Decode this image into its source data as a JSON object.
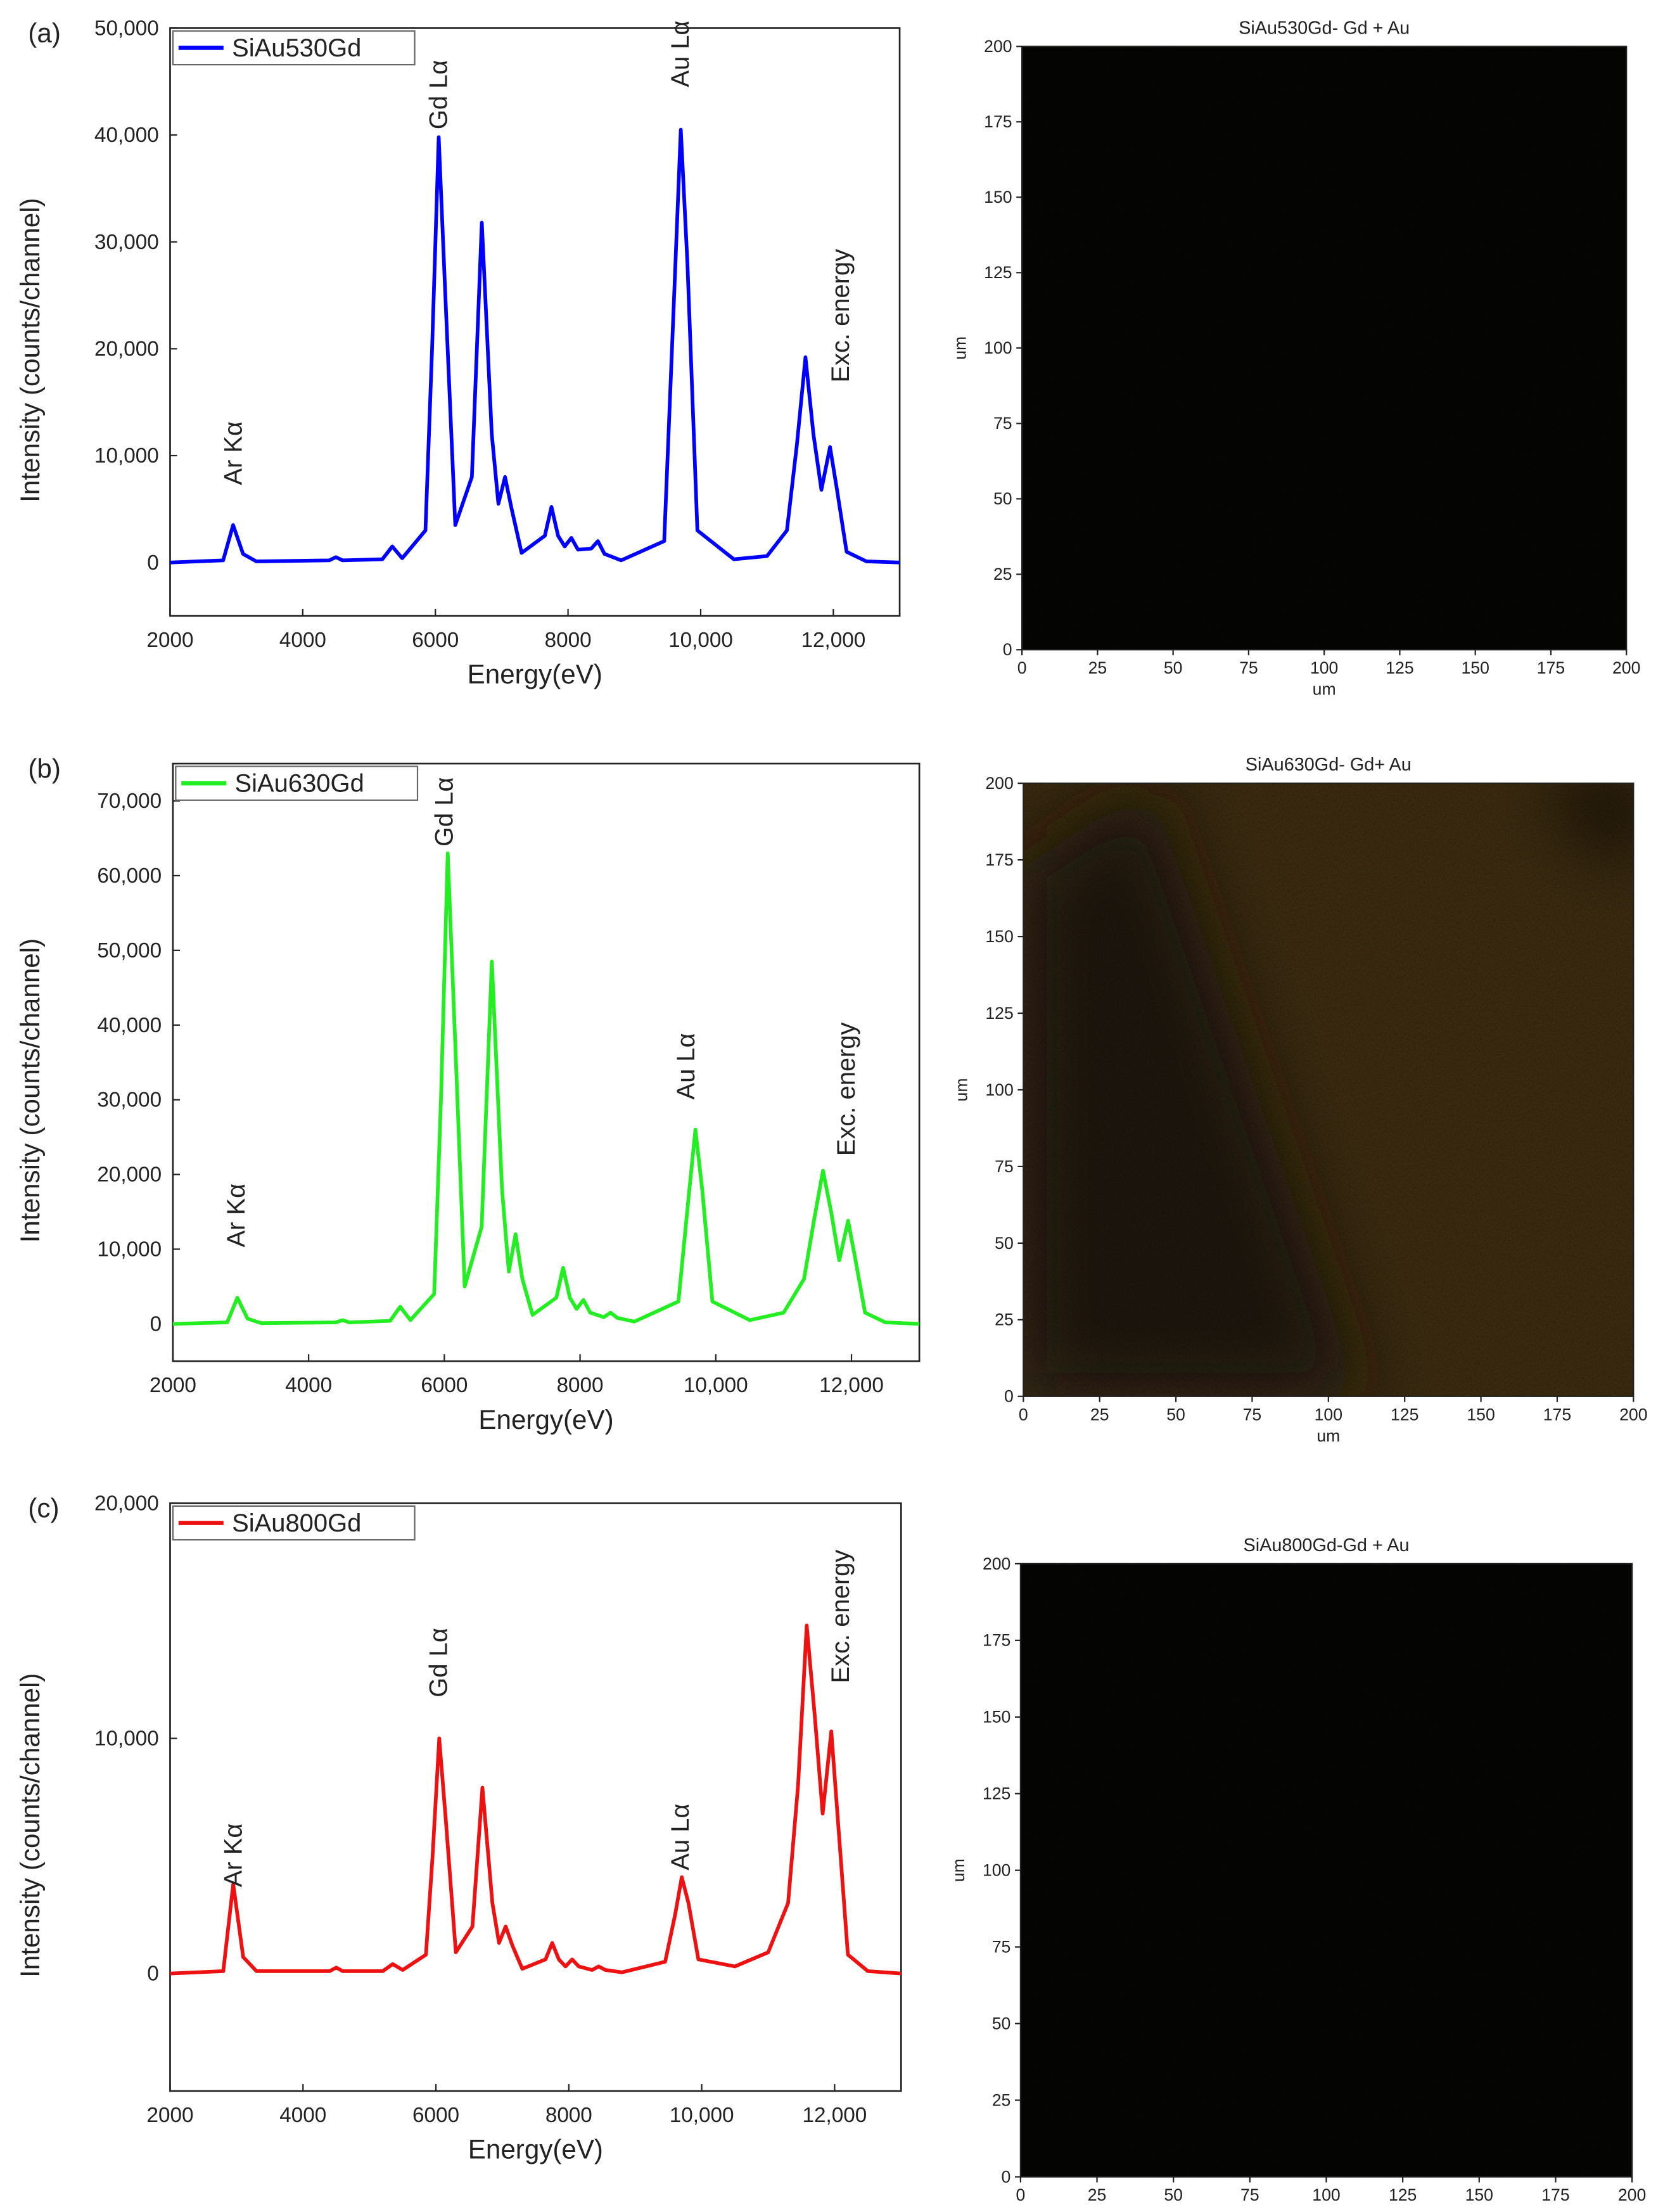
{
  "chart_data": [
    {
      "type": "line",
      "panel_label": "(a)",
      "xlabel": "Energy(eV)",
      "ylabel": "Intensity (counts/channel)",
      "x": [
        2000,
        2800,
        2950,
        3100,
        3300,
        4400,
        4500,
        4600,
        5200,
        5350,
        5500,
        5850,
        5950,
        6050,
        6150,
        6300,
        6550,
        6700,
        6850,
        6950,
        7050,
        7150,
        7300,
        7650,
        7750,
        7850,
        7950,
        8050,
        8150,
        8350,
        8450,
        8550,
        8800,
        9450,
        9600,
        9700,
        9800,
        9950,
        10500,
        11000,
        11300,
        11450,
        11580,
        11700,
        11820,
        11950,
        12050,
        12200,
        12500,
        13000
      ],
      "series": [
        {
          "name": "SiAu530Gd",
          "color": "#0000ff",
          "values": [
            0,
            200,
            3500,
            800,
            100,
            200,
            500,
            200,
            300,
            1500,
            400,
            3000,
            20000,
            39800,
            25000,
            3500,
            8000,
            31800,
            12000,
            5500,
            8000,
            5000,
            900,
            2500,
            5200,
            2500,
            1500,
            2300,
            1200,
            1300,
            2000,
            800,
            200,
            2000,
            25000,
            40500,
            28000,
            3000,
            300,
            600,
            3000,
            11000,
            19200,
            12000,
            6800,
            10800,
            7000,
            1000,
            100,
            0
          ]
        }
      ],
      "xlim": [
        2000,
        13000
      ],
      "ylim": [
        -5000,
        50000
      ],
      "xticks": [
        2000,
        4000,
        6000,
        8000,
        {
          "value": 10000,
          "label": "10,000"
        },
        {
          "value": 12000,
          "label": "12,000"
        }
      ],
      "yticks": [
        0,
        {
          "value": 10000,
          "label": "10,000"
        },
        {
          "value": 20000,
          "label": "20,000"
        },
        {
          "value": 30000,
          "label": "30,000"
        },
        {
          "value": 40000,
          "label": "40,000"
        },
        {
          "value": 50000,
          "label": "50,000"
        }
      ],
      "annotations": [
        "Ar Kα",
        "Gd Lα",
        "Au Lα",
        "Exc. energy"
      ],
      "legend": "upper left"
    },
    {
      "type": "image",
      "title": "SiAu530Gd- Gd + Au",
      "xlabel": "um",
      "ylabel": "um",
      "xlim": [
        0,
        200
      ],
      "ylim": [
        0,
        200
      ],
      "xticks": [
        0,
        25,
        50,
        75,
        100,
        125,
        150,
        175,
        200
      ],
      "yticks": [
        0,
        25,
        50,
        75,
        100,
        125,
        150,
        175,
        200
      ]
    },
    {
      "type": "line",
      "panel_label": "(b)",
      "xlabel": "Energy(eV)",
      "ylabel": "Intensity (counts/channel)",
      "x": [
        2000,
        2800,
        2950,
        3100,
        3300,
        4400,
        4500,
        4600,
        5200,
        5350,
        5500,
        5850,
        5950,
        6050,
        6150,
        6300,
        6550,
        6700,
        6850,
        6950,
        7050,
        7150,
        7300,
        7650,
        7750,
        7850,
        7950,
        8050,
        8150,
        8350,
        8450,
        8550,
        8800,
        9450,
        9600,
        9700,
        9800,
        9950,
        10500,
        11000,
        11300,
        11450,
        11580,
        11700,
        11820,
        11950,
        12050,
        12200,
        12500,
        13000
      ],
      "series": [
        {
          "name": "SiAu630Gd",
          "color": "#22ee22",
          "values": [
            0,
            200,
            3500,
            700,
            100,
            200,
            500,
            200,
            400,
            2300,
            500,
            4000,
            30000,
            63000,
            40000,
            5000,
            13000,
            48500,
            18000,
            7000,
            12000,
            6000,
            1200,
            3500,
            7500,
            3500,
            2000,
            3200,
            1500,
            900,
            1500,
            800,
            300,
            3000,
            17000,
            26000,
            18000,
            3000,
            500,
            1500,
            6000,
            14000,
            20500,
            15000,
            8500,
            13800,
            9000,
            1500,
            200,
            0
          ]
        }
      ],
      "xlim": [
        2000,
        13000
      ],
      "ylim": [
        -5000,
        75000
      ],
      "xticks": [
        2000,
        4000,
        6000,
        8000,
        {
          "value": 10000,
          "label": "10,000"
        },
        {
          "value": 12000,
          "label": "12,000"
        }
      ],
      "yticks": [
        0,
        {
          "value": 10000,
          "label": "10,000"
        },
        {
          "value": 20000,
          "label": "20,000"
        },
        {
          "value": 30000,
          "label": "30,000"
        },
        {
          "value": 40000,
          "label": "40,000"
        },
        {
          "value": 50000,
          "label": "50,000"
        },
        {
          "value": 60000,
          "label": "60,000"
        },
        {
          "value": 70000,
          "label": "70,000"
        }
      ],
      "annotations": [
        "Ar Kα",
        "Gd Lα",
        "Au Lα",
        "Exc. energy"
      ],
      "legend": "upper left"
    },
    {
      "type": "image",
      "title": "SiAu630Gd- Gd+ Au",
      "xlabel": "um",
      "ylabel": "um",
      "xlim": [
        0,
        200
      ],
      "ylim": [
        0,
        200
      ],
      "xticks": [
        0,
        25,
        50,
        75,
        100,
        125,
        150,
        175,
        200
      ],
      "yticks": [
        0,
        25,
        50,
        75,
        100,
        125,
        150,
        175,
        200
      ]
    },
    {
      "type": "line",
      "panel_label": "(c)",
      "xlabel": "Energy(eV)",
      "ylabel": "Intensity (counts/channel)",
      "x": [
        2000,
        2800,
        2950,
        3100,
        3300,
        4400,
        4500,
        4600,
        5200,
        5350,
        5500,
        5850,
        5950,
        6050,
        6150,
        6300,
        6550,
        6700,
        6850,
        6950,
        7050,
        7150,
        7300,
        7650,
        7750,
        7850,
        7950,
        8050,
        8150,
        8350,
        8450,
        8550,
        8800,
        9450,
        9600,
        9700,
        9800,
        9950,
        10500,
        11000,
        11300,
        11450,
        11580,
        11700,
        11820,
        11950,
        12050,
        12200,
        12500,
        13000
      ],
      "series": [
        {
          "name": "SiAu800Gd",
          "color": "#ee1111",
          "values": [
            0,
            100,
            3800,
            700,
            100,
            100,
            250,
            100,
            100,
            400,
            150,
            800,
            5000,
            10000,
            6500,
            900,
            2000,
            7900,
            3000,
            1300,
            2000,
            1200,
            200,
            600,
            1300,
            600,
            300,
            600,
            300,
            150,
            300,
            150,
            50,
            500,
            2500,
            4100,
            3000,
            600,
            300,
            900,
            3000,
            8000,
            14800,
            11000,
            6800,
            10300,
            6500,
            800,
            100,
            0
          ]
        }
      ],
      "xlim": [
        2000,
        13000
      ],
      "ylim": [
        -5000,
        20000
      ],
      "xticks": [
        2000,
        4000,
        6000,
        8000,
        {
          "value": 10000,
          "label": "10,000"
        },
        {
          "value": 12000,
          "label": "12,000"
        }
      ],
      "yticks": [
        0,
        {
          "value": 10000,
          "label": "10,000"
        },
        {
          "value": 20000,
          "label": "20,000"
        }
      ],
      "annotations": [
        "Ar Kα",
        "Gd Lα",
        "Au Lα",
        "Exc. energy"
      ],
      "legend": "upper left"
    },
    {
      "type": "image",
      "title": "SiAu800Gd-Gd + Au",
      "xlabel": "um",
      "ylabel": "um",
      "xlim": [
        0,
        200
      ],
      "ylim": [
        0,
        200
      ],
      "xticks": [
        0,
        25,
        50,
        75,
        100,
        125,
        150,
        175,
        200
      ],
      "yticks": [
        0,
        25,
        50,
        75,
        100,
        125,
        150,
        175,
        200
      ]
    }
  ]
}
